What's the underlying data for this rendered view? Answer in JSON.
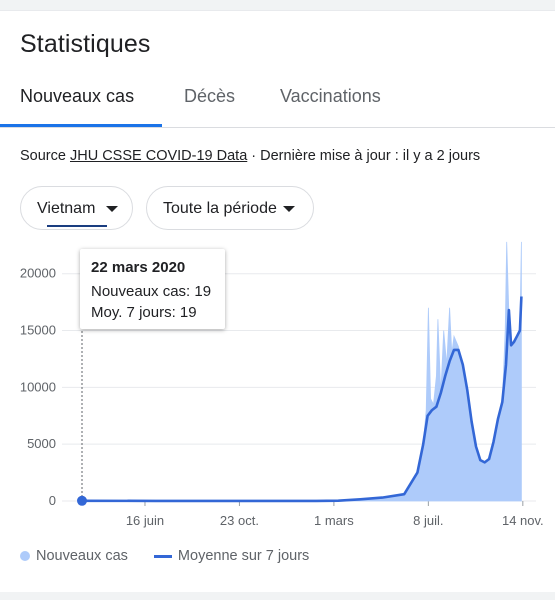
{
  "header": {
    "title": "Statistiques"
  },
  "tabs": [
    {
      "label": "Nouveaux cas",
      "active": true
    },
    {
      "label": "Décès",
      "active": false
    },
    {
      "label": "Vaccinations",
      "active": false
    }
  ],
  "source": {
    "prefix": "Source ",
    "link": "JHU CSSE COVID-19 Data",
    "suffix": " · Dernière mise à jour : il y a 2 jours"
  },
  "filters": {
    "country": "Vietnam",
    "period": "Toute la période"
  },
  "tooltip": {
    "date": "22 mars 2020",
    "new_cases": "Nouveaux cas: 19",
    "avg": "Moy. 7 jours: 19"
  },
  "legend": {
    "cases": "Nouveaux cas",
    "avg": "Moyenne sur 7 jours"
  },
  "colors": {
    "accent": "#1a73e8",
    "bar_fill": "#aecbfa",
    "line": "#3367d6"
  },
  "chart_data": {
    "type": "area",
    "x_tick_labels": [
      "16 juin",
      "23 oct.",
      "1 mars",
      "8 juil.",
      "14 nov."
    ],
    "y_tick_labels": [
      "0",
      "5000",
      "10000",
      "15000",
      "20000"
    ],
    "ylim": [
      0,
      22000
    ],
    "x_domain_days": [
      0,
      620
    ],
    "x_tick_days": [
      86,
      215,
      344,
      473,
      602
    ],
    "series": [
      {
        "name": "Moyenne sur 7 jours",
        "points": [
          [
            0,
            19
          ],
          [
            100,
            10
          ],
          [
            200,
            5
          ],
          [
            280,
            5
          ],
          [
            320,
            10
          ],
          [
            350,
            30
          ],
          [
            380,
            150
          ],
          [
            410,
            300
          ],
          [
            440,
            600
          ],
          [
            458,
            2500
          ],
          [
            466,
            5000
          ],
          [
            472,
            7500
          ],
          [
            478,
            8000
          ],
          [
            484,
            8300
          ],
          [
            490,
            9500
          ],
          [
            496,
            11000
          ],
          [
            502,
            12300
          ],
          [
            508,
            13300
          ],
          [
            514,
            13300
          ],
          [
            520,
            12000
          ],
          [
            526,
            9800
          ],
          [
            532,
            7000
          ],
          [
            538,
            4800
          ],
          [
            544,
            3600
          ],
          [
            550,
            3400
          ],
          [
            556,
            3700
          ],
          [
            562,
            5200
          ],
          [
            568,
            7200
          ],
          [
            574,
            8700
          ],
          [
            579,
            12000
          ],
          [
            583,
            16800
          ],
          [
            586,
            13700
          ],
          [
            590,
            14000
          ],
          [
            594,
            14500
          ],
          [
            598,
            15000
          ],
          [
            600,
            18000
          ]
        ]
      },
      {
        "name": "Nouveaux cas",
        "points": [
          [
            0,
            19
          ],
          [
            100,
            10
          ],
          [
            200,
            5
          ],
          [
            280,
            5
          ],
          [
            320,
            10
          ],
          [
            350,
            30
          ],
          [
            380,
            150
          ],
          [
            410,
            300
          ],
          [
            440,
            600
          ],
          [
            458,
            2500
          ],
          [
            466,
            5000
          ],
          [
            470,
            8000
          ],
          [
            473,
            17000
          ],
          [
            476,
            9000
          ],
          [
            480,
            8500
          ],
          [
            484,
            11000
          ],
          [
            486,
            16000
          ],
          [
            490,
            9500
          ],
          [
            494,
            15000
          ],
          [
            498,
            12000
          ],
          [
            502,
            17000
          ],
          [
            505,
            13000
          ],
          [
            508,
            14500
          ],
          [
            514,
            13600
          ],
          [
            520,
            12000
          ],
          [
            526,
            9800
          ],
          [
            532,
            7000
          ],
          [
            538,
            4800
          ],
          [
            544,
            3600
          ],
          [
            550,
            3400
          ],
          [
            556,
            3700
          ],
          [
            562,
            5200
          ],
          [
            568,
            7200
          ],
          [
            574,
            8700
          ],
          [
            578,
            15000
          ],
          [
            580,
            22800
          ],
          [
            583,
            16500
          ],
          [
            586,
            13700
          ],
          [
            590,
            14000
          ],
          [
            594,
            14500
          ],
          [
            598,
            15200
          ],
          [
            600,
            22800
          ]
        ]
      }
    ],
    "highlight_x": 0
  }
}
